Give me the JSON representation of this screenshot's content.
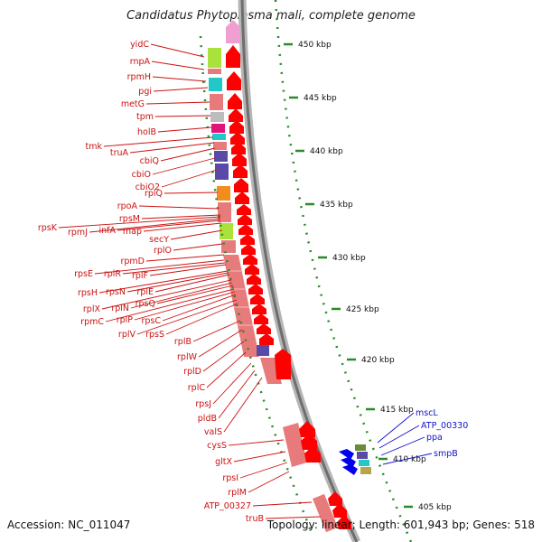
{
  "title": "Candidatus Phytoplasma mali, complete genome",
  "accession": "Accession: NC_011047",
  "summary": "Topology: linear; Length: 601,943 bp; Genes: 518",
  "colors": {
    "label_red": "#cc1111",
    "label_blue": "#1111cc",
    "tick_green": "#2a8a2a",
    "arrow_red": "#ff0000",
    "backbone_gray": "#8c8c8c"
  },
  "kbp_ticks": [
    "450 kbp",
    "445 kbp",
    "440 kbp",
    "435 kbp",
    "430 kbp",
    "425 kbp",
    "420 kbp",
    "415 kbp",
    "410 kbp",
    "405 kbp"
  ],
  "gene_labels_left": [
    "yidC",
    "rnpA",
    "rpmH",
    "pgi",
    "metG",
    "tpm",
    "holB",
    "tmk",
    "truA",
    "cbiQ",
    "cbiO",
    "cbiO2",
    "rplQ",
    "rpoA",
    "rpsM",
    "rpsK",
    "rpmJ",
    "infA",
    "map",
    "secY",
    "rplO",
    "rpmD",
    "rpsE",
    "rplR",
    "rplF",
    "rpsH",
    "rpsN",
    "rplE",
    "rplX",
    "rplN",
    "rpsQ",
    "rpmC",
    "rplP",
    "rpsC",
    "rplV",
    "rpsS",
    "rplB",
    "rplW",
    "rplD",
    "rplC",
    "rpsJ",
    "pldB",
    "valS",
    "cysS",
    "gltX",
    "rpsI",
    "rplM",
    "ATP_00327",
    "truB"
  ],
  "gene_labels_right": [
    "mscL",
    "ATP_00330",
    "ppa",
    "smpB"
  ]
}
